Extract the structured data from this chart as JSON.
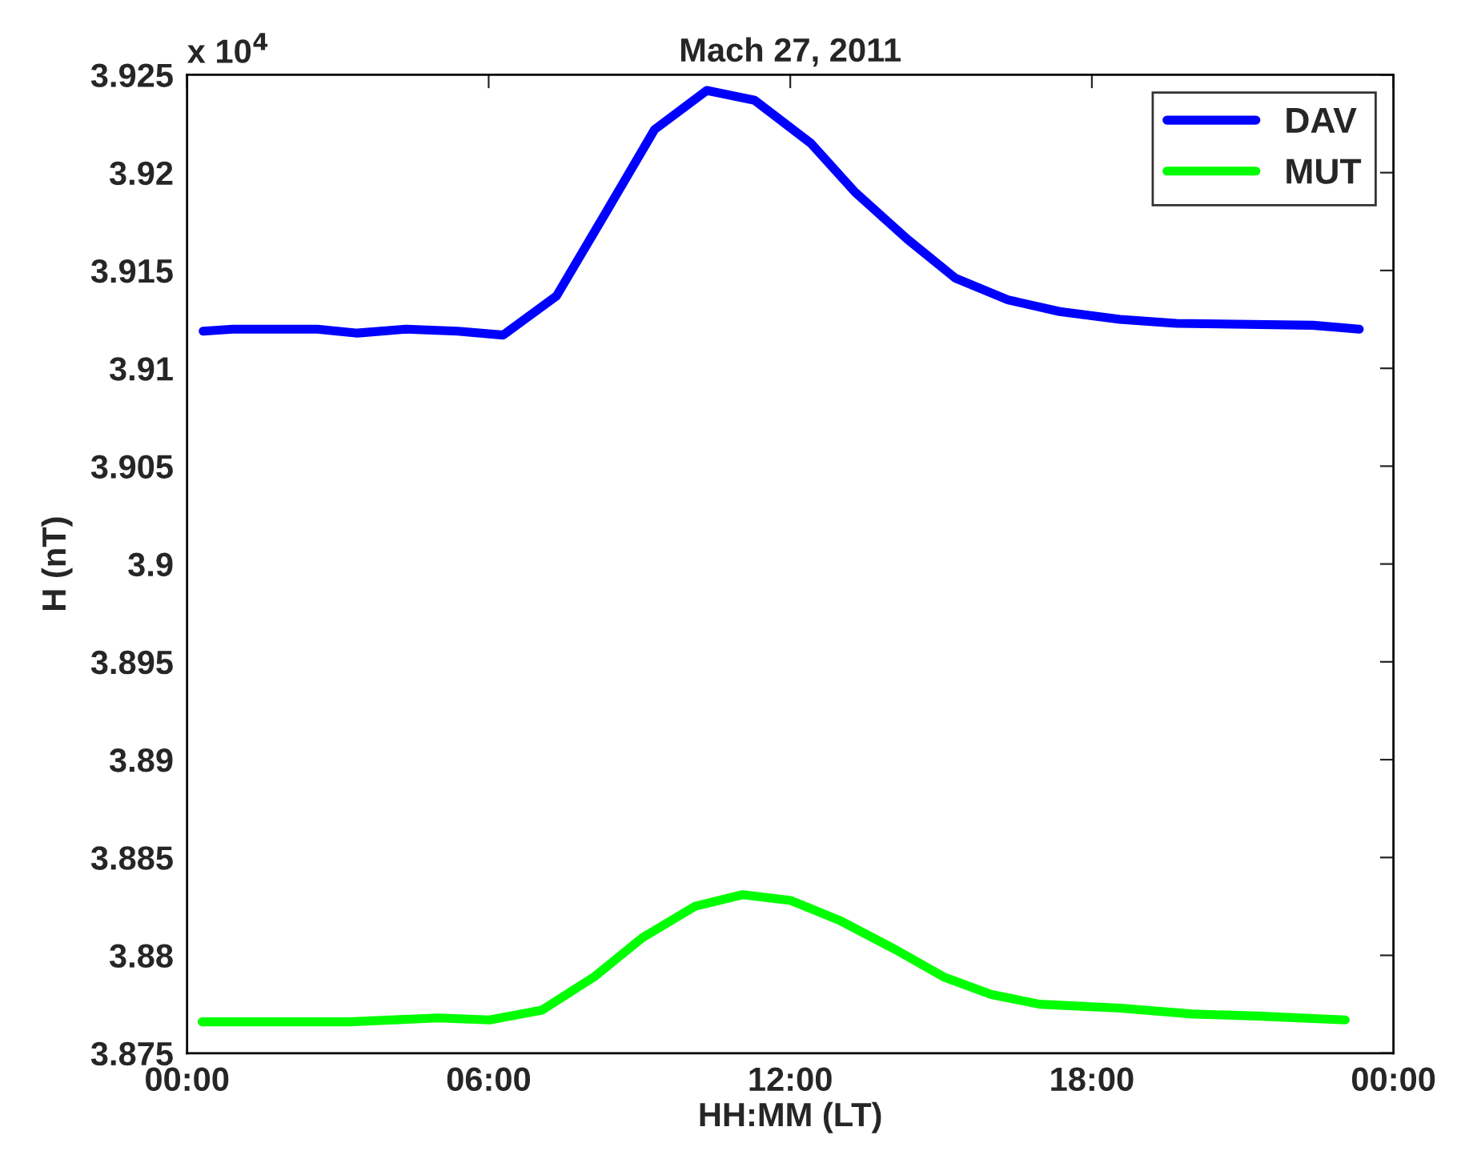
{
  "chart_data": {
    "type": "line",
    "title": "Mach 27, 2011",
    "xlabel": "HH:MM (LT)",
    "ylabel": "H (nT)",
    "annotations": [
      "x 10$^{4}$"
    ],
    "xlim": [
      0,
      24
    ],
    "xticks": [
      {
        "value": 0,
        "label": "00:00"
      },
      {
        "value": 6,
        "label": "06:00"
      },
      {
        "value": 12,
        "label": "12:00"
      },
      {
        "value": 18,
        "label": "18:00"
      },
      {
        "value": 24,
        "label": "00:00"
      }
    ],
    "ylim": [
      3.875,
      3.925
    ],
    "yticks": [
      3.875,
      3.88,
      3.885,
      3.89,
      3.895,
      3.9,
      3.905,
      3.91,
      3.915,
      3.92,
      3.925
    ],
    "grid": false,
    "legend": "top right",
    "marker": "none",
    "line_style": "solid",
    "series": [
      {
        "name": "DAV",
        "color": "#0000ff",
        "x": [
          0.32,
          0.91,
          2.59,
          3.39,
          4.35,
          5.38,
          6.29,
          7.35,
          8.34,
          9.3,
          10.34,
          11.29,
          12.41,
          13.29,
          14.33,
          15.29,
          16.33,
          17.36,
          18.56,
          19.68,
          22.4,
          23.32
        ],
        "values": [
          3.9119,
          3.912,
          3.912,
          3.9118,
          3.912,
          3.9119,
          3.9117,
          3.9137,
          3.918,
          3.9222,
          3.9242,
          3.9237,
          3.9215,
          3.919,
          3.9166,
          3.9146,
          3.9135,
          3.9129,
          3.9125,
          3.9123,
          3.9122,
          3.912
        ]
      },
      {
        "name": "MUT",
        "color": "#00ff00",
        "x": [
          0.3,
          0.67,
          3.23,
          4.98,
          6.02,
          7.06,
          8.1,
          9.06,
          10.1,
          11.05,
          12.01,
          12.97,
          14.09,
          15.05,
          16.0,
          16.96,
          18.56,
          20.0,
          21.28,
          23.04
        ],
        "values": [
          3.8766,
          3.8766,
          3.8766,
          3.8768,
          3.8767,
          3.8772,
          3.8789,
          3.8809,
          3.8825,
          3.8831,
          3.8828,
          3.8818,
          3.8803,
          3.8789,
          3.878,
          3.8775,
          3.8773,
          3.877,
          3.8769,
          3.8767
        ]
      }
    ]
  }
}
